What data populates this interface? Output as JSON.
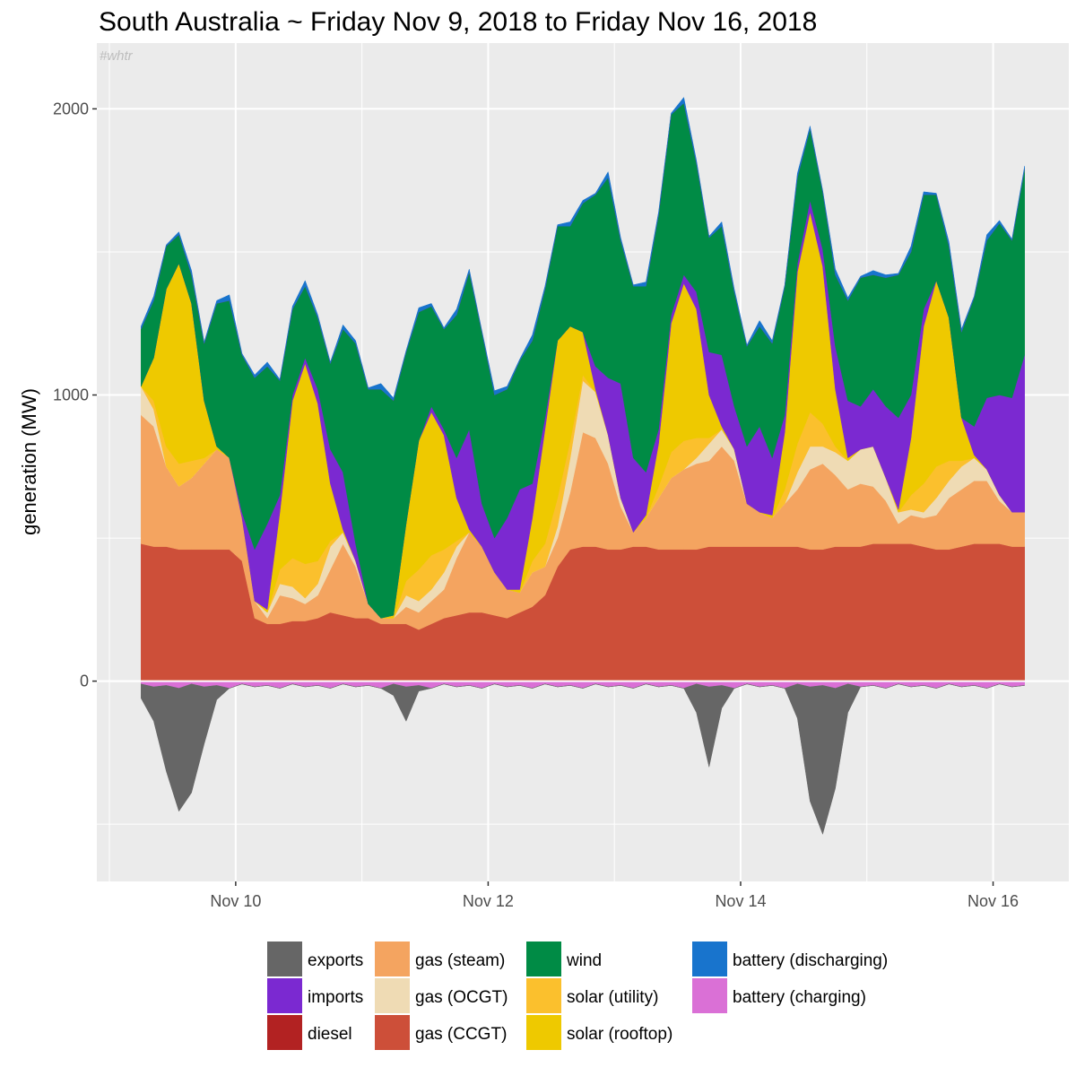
{
  "chart_data": {
    "type": "area",
    "title": "South Australia ~ Friday Nov 9, 2018 to Friday Nov 16, 2018",
    "watermark": "#whtr",
    "xlabel": "",
    "ylabel": "generation (MW)",
    "x_ticks": [
      "Nov 10",
      "Nov 12",
      "Nov 14",
      "Nov 16"
    ],
    "x_tick_days": [
      10,
      12,
      14,
      16
    ],
    "x_range_days": [
      8.9,
      16.6
    ],
    "y_ticks": [
      0,
      1000,
      2000
    ],
    "ylim": [
      -700,
      2230
    ],
    "grid": true,
    "legend_position": "bottom",
    "x_days": [
      9.25,
      9.35,
      9.45,
      9.55,
      9.65,
      9.75,
      9.85,
      9.95,
      10.05,
      10.15,
      10.25,
      10.35,
      10.45,
      10.55,
      10.65,
      10.75,
      10.85,
      10.95,
      11.05,
      11.15,
      11.25,
      11.35,
      11.45,
      11.55,
      11.65,
      11.75,
      11.85,
      11.95,
      12.05,
      12.15,
      12.25,
      12.35,
      12.45,
      12.55,
      12.65,
      12.75,
      12.85,
      12.95,
      13.05,
      13.15,
      13.25,
      13.35,
      13.45,
      13.55,
      13.65,
      13.75,
      13.85,
      13.95,
      14.05,
      14.15,
      14.25,
      14.35,
      14.45,
      14.55,
      14.65,
      14.75,
      14.85,
      14.95,
      15.05,
      15.15,
      15.25,
      15.35,
      15.45,
      15.55,
      15.65,
      15.75,
      15.85,
      15.95,
      16.05,
      16.15,
      16.25
    ],
    "series": [
      {
        "name": "exports",
        "color": "#666666",
        "values": [
          -50,
          -120,
          -300,
          -430,
          -380,
          -200,
          -50,
          0,
          0,
          0,
          0,
          0,
          0,
          0,
          0,
          0,
          0,
          0,
          0,
          0,
          -40,
          -120,
          -20,
          0,
          0,
          0,
          0,
          0,
          0,
          0,
          0,
          0,
          0,
          0,
          0,
          0,
          0,
          0,
          0,
          0,
          0,
          0,
          0,
          0,
          -100,
          -280,
          -80,
          0,
          0,
          0,
          0,
          0,
          -120,
          -400,
          -520,
          -350,
          -100,
          0,
          0,
          0,
          0,
          0,
          0,
          0,
          0,
          0,
          0,
          0,
          0,
          0,
          0
        ]
      },
      {
        "name": "imports",
        "color": "#7b29d1",
        "values": [
          0,
          0,
          0,
          0,
          0,
          0,
          0,
          0,
          20,
          180,
          300,
          60,
          20,
          20,
          50,
          120,
          200,
          60,
          0,
          0,
          0,
          0,
          0,
          20,
          20,
          140,
          350,
          150,
          120,
          250,
          350,
          120,
          40,
          0,
          0,
          0,
          80,
          200,
          400,
          260,
          150,
          50,
          30,
          30,
          60,
          150,
          250,
          150,
          200,
          300,
          200,
          60,
          30,
          40,
          60,
          150,
          200,
          150,
          200,
          250,
          320,
          150,
          60,
          0,
          0,
          0,
          100,
          250,
          350,
          400,
          550
        ]
      },
      {
        "name": "diesel",
        "color": "#b22222",
        "values": [
          0,
          0,
          0,
          0,
          0,
          0,
          0,
          0,
          0,
          0,
          0,
          0,
          0,
          0,
          0,
          0,
          0,
          0,
          0,
          0,
          0,
          0,
          0,
          0,
          0,
          0,
          0,
          0,
          0,
          0,
          0,
          0,
          0,
          0,
          0,
          0,
          0,
          0,
          0,
          0,
          0,
          0,
          0,
          0,
          0,
          0,
          0,
          0,
          0,
          0,
          0,
          0,
          0,
          0,
          0,
          0,
          0,
          0,
          0,
          0,
          0,
          0,
          0,
          0,
          0,
          0,
          0,
          0,
          0,
          0,
          0
        ]
      },
      {
        "name": "gas (steam)",
        "color": "#f4a460",
        "values": [
          450,
          420,
          280,
          220,
          250,
          300,
          350,
          320,
          150,
          60,
          20,
          100,
          80,
          60,
          80,
          150,
          250,
          180,
          50,
          20,
          20,
          60,
          60,
          80,
          100,
          200,
          280,
          230,
          150,
          100,
          70,
          120,
          100,
          100,
          200,
          400,
          380,
          300,
          150,
          50,
          100,
          180,
          250,
          280,
          300,
          300,
          350,
          300,
          150,
          120,
          100,
          150,
          200,
          280,
          300,
          250,
          200,
          220,
          200,
          150,
          70,
          100,
          100,
          120,
          180,
          200,
          220,
          220,
          150,
          120,
          120
        ]
      },
      {
        "name": "gas (OCGT)",
        "color": "#efdbb4",
        "values": [
          100,
          60,
          0,
          0,
          0,
          0,
          0,
          0,
          0,
          0,
          20,
          40,
          40,
          20,
          40,
          80,
          40,
          20,
          0,
          0,
          0,
          40,
          40,
          40,
          60,
          40,
          0,
          0,
          0,
          0,
          0,
          0,
          0,
          40,
          120,
          180,
          160,
          100,
          30,
          0,
          0,
          0,
          0,
          0,
          20,
          60,
          60,
          40,
          0,
          0,
          0,
          0,
          60,
          80,
          60,
          80,
          100,
          120,
          140,
          80,
          40,
          20,
          20,
          60,
          60,
          80,
          80,
          40,
          20,
          0,
          0
        ]
      },
      {
        "name": "gas (CCGT)",
        "color": "#cd4f39",
        "values": [
          480,
          470,
          470,
          460,
          460,
          460,
          460,
          460,
          420,
          220,
          200,
          200,
          210,
          210,
          220,
          240,
          230,
          220,
          220,
          200,
          200,
          200,
          180,
          200,
          220,
          230,
          240,
          240,
          230,
          220,
          240,
          260,
          300,
          400,
          460,
          470,
          470,
          460,
          460,
          470,
          470,
          460,
          460,
          460,
          460,
          470,
          470,
          470,
          470,
          470,
          470,
          470,
          470,
          460,
          460,
          470,
          470,
          470,
          480,
          480,
          480,
          480,
          470,
          460,
          460,
          470,
          480,
          480,
          480,
          470,
          470
        ]
      },
      {
        "name": "wind",
        "color": "#008b45",
        "values": [
          200,
          200,
          150,
          100,
          100,
          200,
          500,
          550,
          550,
          600,
          550,
          400,
          300,
          250,
          250,
          300,
          500,
          700,
          750,
          800,
          750,
          600,
          450,
          350,
          350,
          500,
          550,
          600,
          500,
          450,
          450,
          500,
          450,
          400,
          350,
          450,
          600,
          700,
          500,
          600,
          650,
          750,
          700,
          600,
          450,
          400,
          450,
          400,
          350,
          350,
          400,
          450,
          300,
          250,
          200,
          250,
          350,
          450,
          400,
          450,
          500,
          500,
          400,
          300,
          250,
          300,
          450,
          550,
          600,
          550,
          650
        ]
      },
      {
        "name": "solar (utility)",
        "color": "#fbc02d",
        "values": [
          0,
          30,
          70,
          80,
          60,
          20,
          0,
          0,
          0,
          0,
          0,
          50,
          100,
          120,
          80,
          20,
          0,
          0,
          0,
          0,
          0,
          50,
          110,
          120,
          80,
          20,
          0,
          0,
          0,
          0,
          0,
          40,
          80,
          100,
          60,
          20,
          0,
          0,
          0,
          0,
          0,
          40,
          90,
          100,
          70,
          20,
          0,
          0,
          0,
          0,
          0,
          50,
          100,
          120,
          80,
          20,
          0,
          0,
          0,
          0,
          0,
          50,
          100,
          110,
          70,
          20,
          0,
          0,
          0,
          0,
          0
        ]
      },
      {
        "name": "solar (rooftop)",
        "color": "#eec900",
        "values": [
          0,
          150,
          550,
          700,
          550,
          200,
          10,
          0,
          0,
          0,
          10,
          200,
          550,
          700,
          550,
          200,
          10,
          0,
          0,
          0,
          10,
          200,
          450,
          500,
          400,
          150,
          10,
          0,
          0,
          0,
          10,
          150,
          400,
          550,
          400,
          150,
          10,
          0,
          0,
          0,
          10,
          150,
          450,
          550,
          450,
          150,
          10,
          0,
          0,
          0,
          10,
          200,
          600,
          700,
          550,
          200,
          10,
          0,
          0,
          0,
          10,
          200,
          550,
          650,
          500,
          150,
          10,
          0,
          0,
          0,
          0
        ]
      },
      {
        "name": "battery (discharging)",
        "color": "#1874cd",
        "values": [
          10,
          15,
          5,
          10,
          15,
          5,
          10,
          20,
          5,
          10,
          15,
          5,
          10,
          20,
          10,
          5,
          15,
          10,
          5,
          20,
          10,
          5,
          15,
          10,
          5,
          20,
          10,
          5,
          15,
          10,
          5,
          20,
          10,
          5,
          15,
          10,
          5,
          20,
          10,
          5,
          15,
          10,
          5,
          20,
          10,
          5,
          15,
          10,
          5,
          20,
          10,
          5,
          15,
          10,
          5,
          20,
          10,
          5,
          15,
          10,
          5,
          20,
          10,
          5,
          15,
          10,
          5,
          20,
          10,
          5,
          10
        ]
      },
      {
        "name": "battery (charging)",
        "color": "#da70d6",
        "values": [
          -10,
          -20,
          -15,
          -25,
          -10,
          -20,
          -15,
          -25,
          -10,
          -20,
          -15,
          -25,
          -10,
          -20,
          -15,
          -25,
          -10,
          -20,
          -15,
          -25,
          -10,
          -20,
          -15,
          -25,
          -10,
          -20,
          -15,
          -25,
          -10,
          -20,
          -15,
          -25,
          -10,
          -20,
          -15,
          -25,
          -10,
          -20,
          -15,
          -25,
          -10,
          -20,
          -15,
          -25,
          -10,
          -20,
          -15,
          -25,
          -10,
          -20,
          -15,
          -25,
          -10,
          -20,
          -15,
          -25,
          -10,
          -20,
          -15,
          -25,
          -10,
          -20,
          -15,
          -25,
          -10,
          -20,
          -15,
          -25,
          -10,
          -20,
          -15
        ]
      }
    ],
    "stack_order_positive": [
      "gas (CCGT)",
      "gas (steam)",
      "gas (OCGT)",
      "solar (utility)",
      "solar (rooftop)",
      "imports",
      "wind",
      "diesel",
      "battery (discharging)"
    ],
    "stack_order_negative": [
      "battery (charging)",
      "exports"
    ],
    "legend": [
      [
        "exports",
        "imports",
        "diesel"
      ],
      [
        "gas (steam)",
        "gas (OCGT)",
        "gas (CCGT)"
      ],
      [
        "wind",
        "solar (utility)",
        "solar (rooftop)"
      ],
      [
        "battery (discharging)",
        "battery (charging)"
      ]
    ]
  }
}
